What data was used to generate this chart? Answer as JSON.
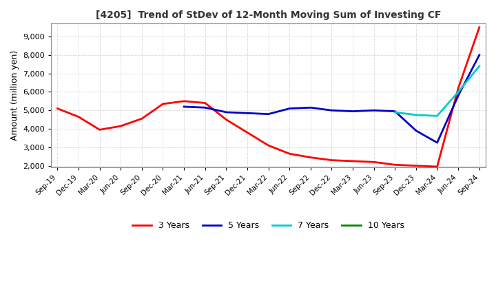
{
  "title": "[4205]  Trend of StDev of 12-Month Moving Sum of Investing CF",
  "ylabel": "Amount (million yen)",
  "ylim": [
    1900,
    9700
  ],
  "yticks": [
    2000,
    3000,
    4000,
    5000,
    6000,
    7000,
    8000,
    9000
  ],
  "background_color": "#ffffff",
  "grid_color": "#aaaaaa",
  "legend": [
    "3 Years",
    "5 Years",
    "7 Years",
    "10 Years"
  ],
  "line_colors": [
    "#ff0000",
    "#0000cc",
    "#00cccc",
    "#008800"
  ],
  "x_labels": [
    "Sep-19",
    "Dec-19",
    "Mar-20",
    "Jun-20",
    "Sep-20",
    "Dec-20",
    "Mar-21",
    "Jun-21",
    "Sep-21",
    "Dec-21",
    "Mar-22",
    "Jun-22",
    "Sep-22",
    "Dec-22",
    "Mar-23",
    "Jun-23",
    "Sep-23",
    "Dec-23",
    "Mar-24",
    "Jun-24",
    "Sep-24"
  ],
  "series_3y": [
    5100,
    4650,
    3950,
    4150,
    4550,
    5350,
    5500,
    5400,
    4500,
    3800,
    3100,
    2650,
    2450,
    2300,
    2250,
    2200,
    2050,
    2000,
    1950,
    6200,
    9500
  ],
  "series_5y": [
    null,
    null,
    null,
    null,
    null,
    null,
    5200,
    5150,
    4900,
    4850,
    4800,
    5100,
    5150,
    5000,
    4950,
    5000,
    4950,
    3900,
    3250,
    5800,
    8000
  ],
  "series_7y": [
    null,
    null,
    null,
    null,
    null,
    null,
    null,
    null,
    null,
    null,
    null,
    null,
    null,
    null,
    null,
    null,
    4900,
    4750,
    4700,
    6000,
    7400
  ],
  "series_10y": [
    null,
    null,
    null,
    null,
    null,
    null,
    null,
    null,
    null,
    null,
    null,
    null,
    null,
    null,
    null,
    null,
    null,
    null,
    null,
    null,
    null
  ]
}
